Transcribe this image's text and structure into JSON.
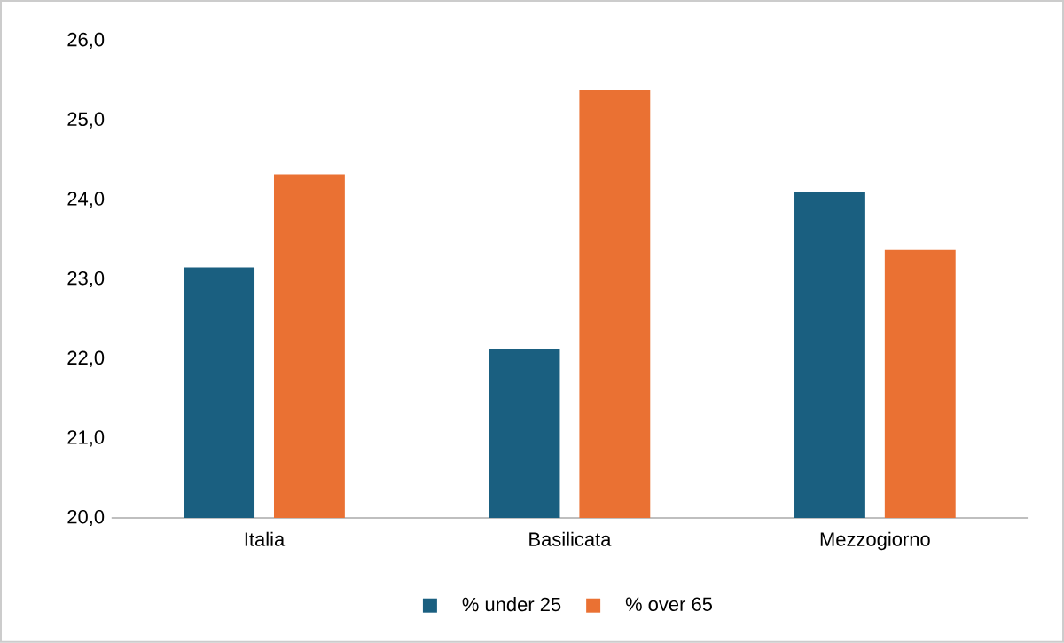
{
  "chart_data": {
    "type": "bar",
    "categories": [
      "Italia",
      "Basilicata",
      "Mezzogiorno"
    ],
    "series": [
      {
        "name": "% under 25",
        "color": "#1a5f80",
        "values": [
          23.15,
          22.13,
          24.1
        ]
      },
      {
        "name": "% over 65",
        "color": "#ea7133",
        "values": [
          24.32,
          25.38,
          23.37
        ]
      }
    ],
    "ylim": [
      20,
      26
    ],
    "yticks": [
      {
        "value": 20,
        "label": "20,0"
      },
      {
        "value": 21,
        "label": "21,0"
      },
      {
        "value": 22,
        "label": "22,0"
      },
      {
        "value": 23,
        "label": "23,0"
      },
      {
        "value": 24,
        "label": "24,0"
      },
      {
        "value": 25,
        "label": "25,0"
      },
      {
        "value": 26,
        "label": "26,0"
      }
    ],
    "grid": false,
    "legend": "bottom"
  }
}
